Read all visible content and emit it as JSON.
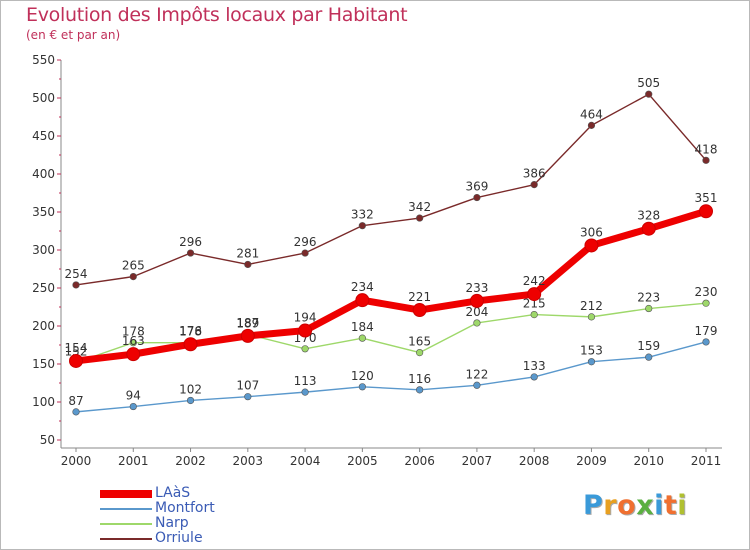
{
  "title": "Evolution des Impôts locaux par Habitant",
  "subtitle": "(en € et par an)",
  "logo": {
    "text": "Proxiti",
    "letter_colors": [
      "#3a9ad9",
      "#e8a020",
      "#f07030",
      "#5ab040",
      "#3a9ad9",
      "#f07030",
      "#b0c030"
    ]
  },
  "chart_data": {
    "type": "line",
    "x": [
      "2000",
      "2001",
      "2002",
      "2003",
      "2004",
      "2005",
      "2006",
      "2007",
      "2008",
      "2009",
      "2010",
      "2011"
    ],
    "ylim": [
      50,
      550
    ],
    "yticks": [
      50,
      100,
      150,
      200,
      250,
      300,
      350,
      400,
      450,
      500,
      550
    ],
    "grid": false,
    "legend_position": "bottom-left",
    "series": [
      {
        "name": "Orriule",
        "color": "#7a2a2a",
        "values": [
          254,
          265,
          296,
          281,
          296,
          332,
          342,
          369,
          386,
          464,
          505,
          418
        ]
      },
      {
        "name": "Narp",
        "color": "#9ed86a",
        "values": [
          152,
          178,
          178,
          189,
          170,
          184,
          165,
          204,
          215,
          212,
          223,
          230
        ]
      },
      {
        "name": "Montfort",
        "color": "#5a98cc",
        "values": [
          87,
          94,
          102,
          107,
          113,
          120,
          116,
          122,
          133,
          153,
          159,
          179
        ]
      },
      {
        "name": "LAàS",
        "color": "#ee0000",
        "values": [
          154,
          163,
          176,
          187,
          194,
          234,
          221,
          233,
          242,
          306,
          328,
          351
        ]
      }
    ],
    "legend_order": [
      "LAàS",
      "Montfort",
      "Narp",
      "Orriule"
    ]
  }
}
